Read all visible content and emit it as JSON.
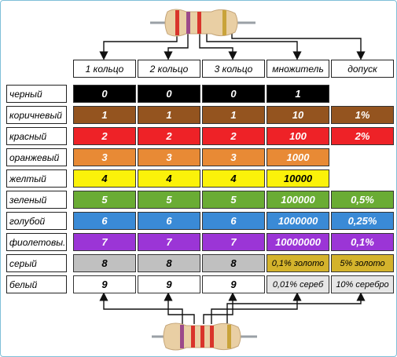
{
  "headers": [
    "1 кольцо",
    "2 кольцо",
    "3 кольцо",
    "множитель",
    "допуск"
  ],
  "rows": [
    {
      "color": "черный",
      "fill": "#000000",
      "text": "#ffffff",
      "bands": [
        "0",
        "0",
        "0"
      ],
      "multiplier": "1",
      "mult_fill": "#000000",
      "mult_text": "#ffffff",
      "tolerance": null
    },
    {
      "color": "коричневый",
      "fill": "#94541f",
      "text": "#ffffff",
      "bands": [
        "1",
        "1",
        "1"
      ],
      "multiplier": "10",
      "mult_fill": "#94541f",
      "mult_text": "#ffffff",
      "tolerance": "1%",
      "tol_fill": "#94541f",
      "tol_text": "#ffffff"
    },
    {
      "color": "красный",
      "fill": "#ee2227",
      "text": "#ffffff",
      "bands": [
        "2",
        "2",
        "2"
      ],
      "multiplier": "100",
      "mult_fill": "#ee2227",
      "mult_text": "#ffffff",
      "tolerance": "2%",
      "tol_fill": "#ee2227",
      "tol_text": "#ffffff"
    },
    {
      "color": "оранжевый",
      "fill": "#e88a35",
      "text": "#ffffff",
      "bands": [
        "3",
        "3",
        "3"
      ],
      "multiplier": "1000",
      "mult_fill": "#e88a35",
      "mult_text": "#ffffff",
      "tolerance": null
    },
    {
      "color": "желтый",
      "fill": "#fbf20a",
      "text": "#000000",
      "bands": [
        "4",
        "4",
        "4"
      ],
      "multiplier": "10000",
      "mult_fill": "#fbf20a",
      "mult_text": "#000000",
      "tolerance": null
    },
    {
      "color": "зеленый",
      "fill": "#6aac34",
      "text": "#ffffff",
      "bands": [
        "5",
        "5",
        "5"
      ],
      "multiplier": "100000",
      "mult_fill": "#6aac34",
      "mult_text": "#ffffff",
      "tolerance": "0,5%",
      "tol_fill": "#6aac34",
      "tol_text": "#ffffff"
    },
    {
      "color": "голубой",
      "fill": "#3a8ad6",
      "text": "#ffffff",
      "bands": [
        "6",
        "6",
        "6"
      ],
      "multiplier": "1000000",
      "mult_fill": "#3a8ad6",
      "mult_text": "#ffffff",
      "tolerance": "0,25%",
      "tol_fill": "#3a8ad6",
      "tol_text": "#ffffff"
    },
    {
      "color": "фиолетовы.",
      "fill": "#9b35d6",
      "text": "#ffffff",
      "bands": [
        "7",
        "7",
        "7"
      ],
      "multiplier": "10000000",
      "mult_fill": "#9b35d6",
      "mult_text": "#ffffff",
      "tolerance": "0,1%",
      "tol_fill": "#9b35d6",
      "tol_text": "#ffffff"
    },
    {
      "color": "серый",
      "fill": "#c0c0c0",
      "text": "#000000",
      "bands": [
        "8",
        "8",
        "8"
      ],
      "multiplier": "0,1% золото",
      "mult_fill": "#d4b32c",
      "mult_text": "#000000",
      "tolerance": "5% золото",
      "tol_fill": "#d4b32c",
      "tol_text": "#000000"
    },
    {
      "color": "белый",
      "fill": "#ffffff",
      "text": "#000000",
      "bands": [
        "9",
        "9",
        "9"
      ],
      "multiplier": "0,01% сереб",
      "mult_fill": "#e6e6e6",
      "mult_text": "#000000",
      "tolerance": "10% серебро",
      "tol_fill": "#e6e6e6",
      "tol_text": "#000000"
    }
  ],
  "resistor_top": {
    "icon": "resistor-4-band-icon",
    "bands": [
      "#d9342b",
      "#9b4a8a",
      "#d9342b",
      "#c9a33a"
    ]
  },
  "resistor_bottom": {
    "icon": "resistor-5-band-icon",
    "bands": [
      "#9b4a8a",
      "#d9342b",
      "#d9342b",
      "#d9342b",
      "#c9a33a"
    ]
  }
}
